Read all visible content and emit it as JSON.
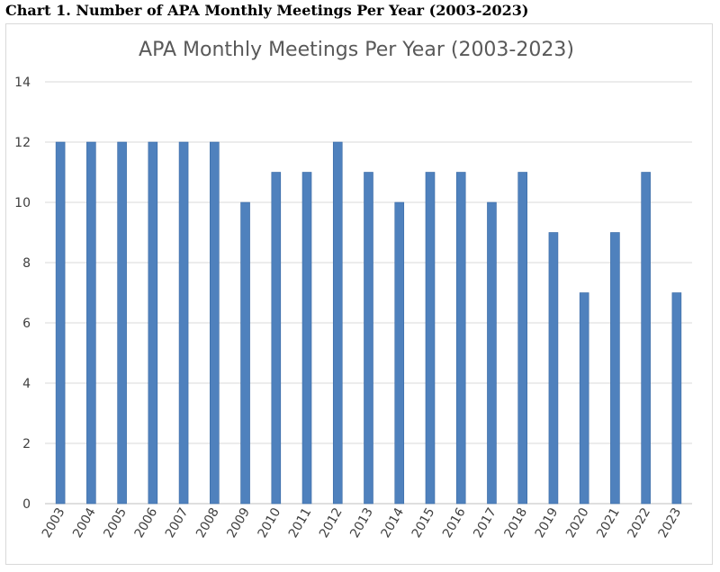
{
  "caption": "Chart 1. Number of APA Monthly Meetings Per Year (2003-2023)",
  "colors": {
    "bar": "#4f81bd",
    "bar_border": "#3a6aa5",
    "grid": "#d9d9d9",
    "axis": "#bfbfbf"
  },
  "chart_data": {
    "type": "bar",
    "title": "APA Monthly Meetings Per Year (2003-2023)",
    "xlabel": "",
    "ylabel": "",
    "categories": [
      "2003",
      "2004",
      "2005",
      "2006",
      "2007",
      "2008",
      "2009",
      "2010",
      "2011",
      "2012",
      "2013",
      "2014",
      "2015",
      "2016",
      "2017",
      "2018",
      "2019",
      "2020",
      "2021",
      "2022",
      "2023"
    ],
    "values": [
      12,
      12,
      12,
      12,
      12,
      12,
      10,
      11,
      11,
      12,
      11,
      10,
      11,
      11,
      10,
      11,
      9,
      7,
      9,
      11,
      7
    ],
    "ylim": [
      0,
      14
    ],
    "yticks": [
      0,
      2,
      4,
      6,
      8,
      10,
      12,
      14
    ],
    "grid": true,
    "legend": "none"
  }
}
